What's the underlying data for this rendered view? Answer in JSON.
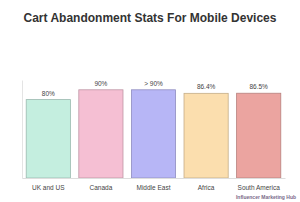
{
  "chart_data": {
    "type": "bar",
    "title": "Cart Abandonment Stats For Mobile Devices",
    "categories": [
      "UK and US",
      "Canada",
      "Middle East",
      "Africa",
      "South America"
    ],
    "values": [
      80,
      90,
      90,
      86.4,
      86.5
    ],
    "value_labels": [
      "80%",
      "90%",
      "> 90%",
      "86.4%",
      "86.5%"
    ],
    "colors": [
      "#c4eedf",
      "#f5bfd3",
      "#b7b6f6",
      "#fbdeae",
      "#eba4a0"
    ],
    "ylim": [
      0,
      100
    ],
    "tick_labels": "x",
    "data_labels": true,
    "grid": false,
    "annotations": [
      "Influencer Marketing Hub"
    ]
  }
}
